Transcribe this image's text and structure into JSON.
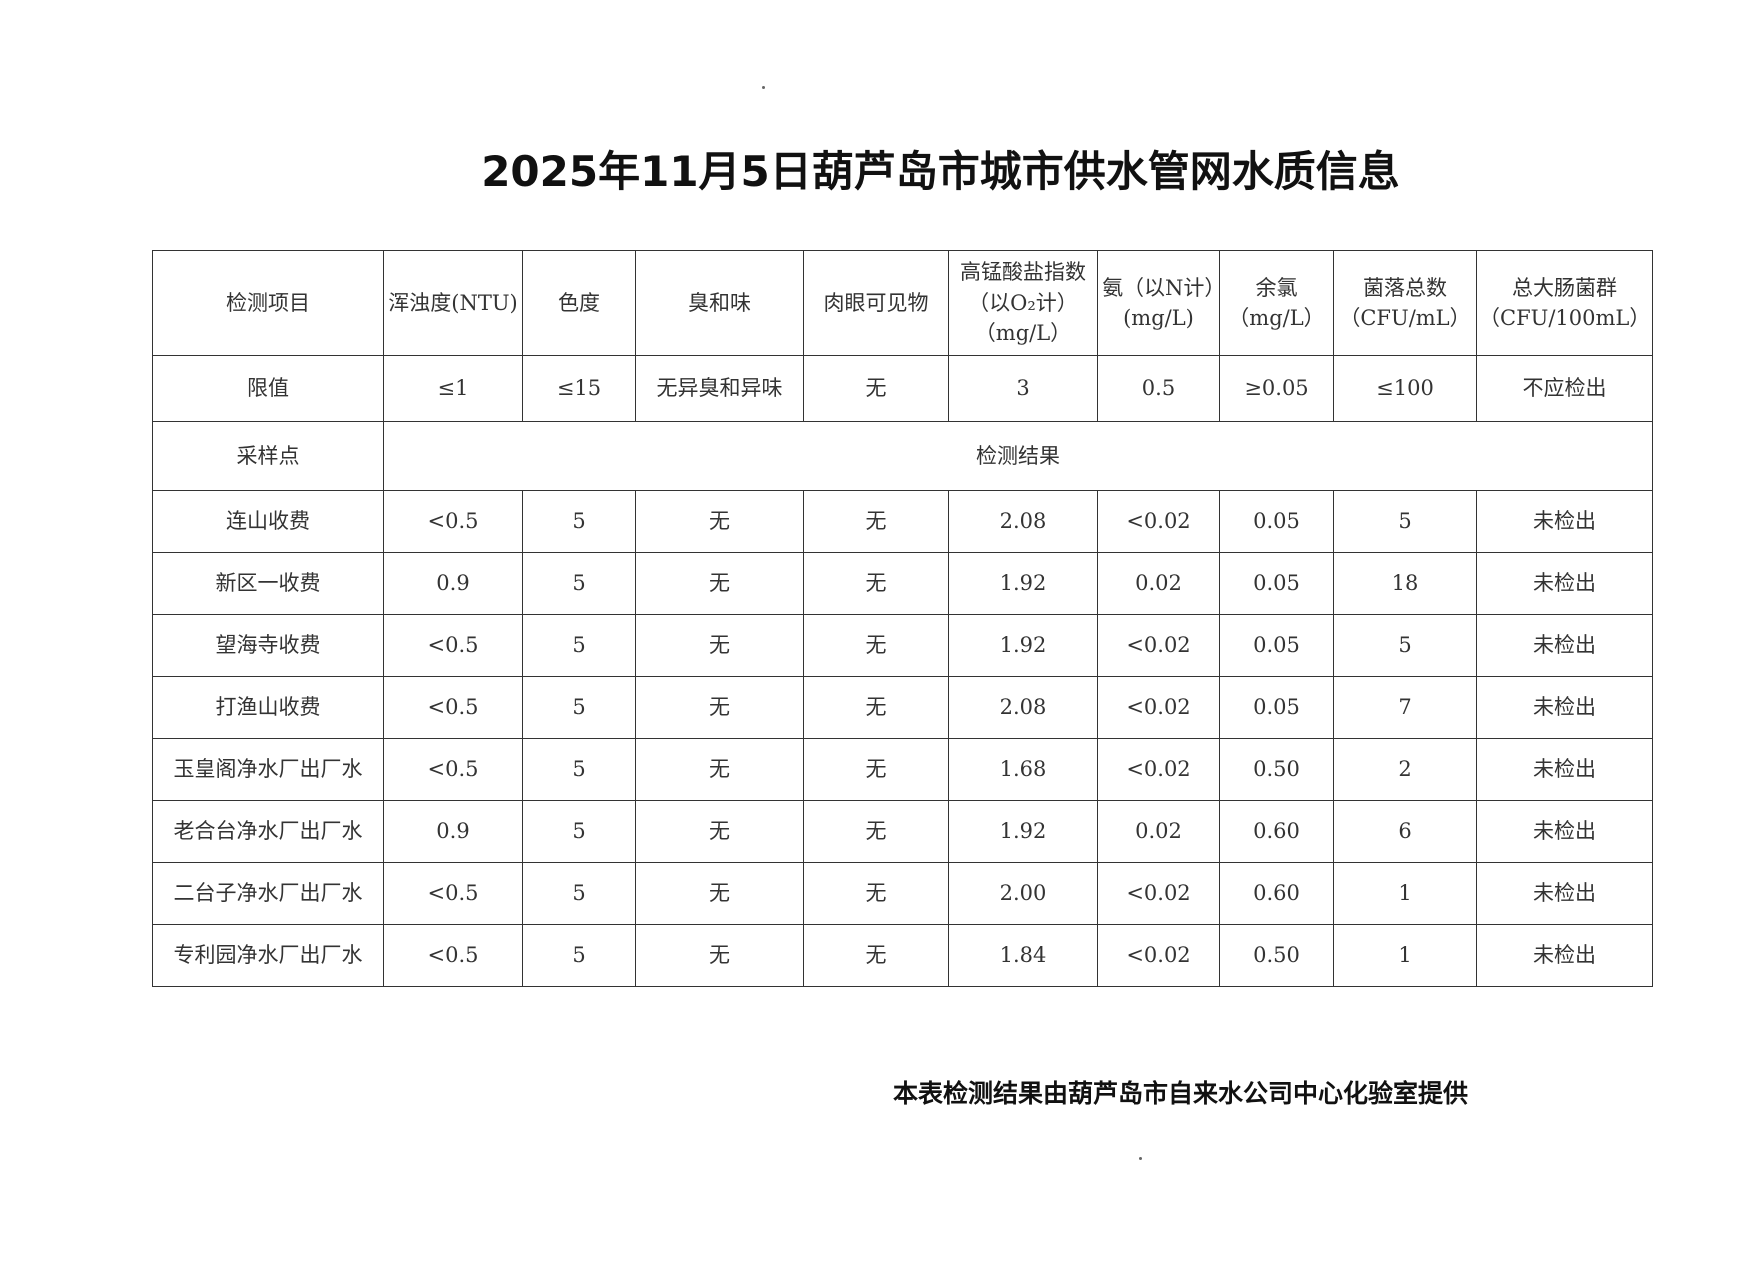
{
  "title": "2025年11月5日葫芦岛市城市供水管网水质信息",
  "table": {
    "headers": [
      "检测项目",
      "浑浊度(NTU)",
      "色度",
      "臭和味",
      "肉眼可见物",
      "高锰酸盐指数（以O₂计）（mg/L）",
      "氨（以N计）(mg/L)",
      "余氯（mg/L）",
      "菌落总数（CFU/mL）",
      "总大肠菌群（CFU/100mL）"
    ],
    "limits_label": "限值",
    "limits": [
      "≤1",
      "≤15",
      "无异臭和异味",
      "无",
      "3",
      "0.5",
      "≥0.05",
      "≤100",
      "不应检出"
    ],
    "sampling_label": "采样点",
    "results_label": "检测结果",
    "rows": [
      [
        "连山收费",
        "<0.5",
        "5",
        "无",
        "无",
        "2.08",
        "<0.02",
        "0.05",
        "5",
        "未检出"
      ],
      [
        "新区一收费",
        "0.9",
        "5",
        "无",
        "无",
        "1.92",
        "0.02",
        "0.05",
        "18",
        "未检出"
      ],
      [
        "望海寺收费",
        "<0.5",
        "5",
        "无",
        "无",
        "1.92",
        "<0.02",
        "0.05",
        "5",
        "未检出"
      ],
      [
        "打渔山收费",
        "<0.5",
        "5",
        "无",
        "无",
        "2.08",
        "<0.02",
        "0.05",
        "7",
        "未检出"
      ],
      [
        "玉皇阁净水厂出厂水",
        "<0.5",
        "5",
        "无",
        "无",
        "1.68",
        "<0.02",
        "0.50",
        "2",
        "未检出"
      ],
      [
        "老合台净水厂出厂水",
        "0.9",
        "5",
        "无",
        "无",
        "1.92",
        "0.02",
        "0.60",
        "6",
        "未检出"
      ],
      [
        "二台子净水厂出厂水",
        "<0.5",
        "5",
        "无",
        "无",
        "2.00",
        "<0.02",
        "0.60",
        "1",
        "未检出"
      ],
      [
        "专利园净水厂出厂水",
        "<0.5",
        "5",
        "无",
        "无",
        "1.84",
        "<0.02",
        "0.50",
        "1",
        "未检出"
      ]
    ]
  },
  "footer": "本表检测结果由葫芦岛市自来水公司中心化验室提供"
}
